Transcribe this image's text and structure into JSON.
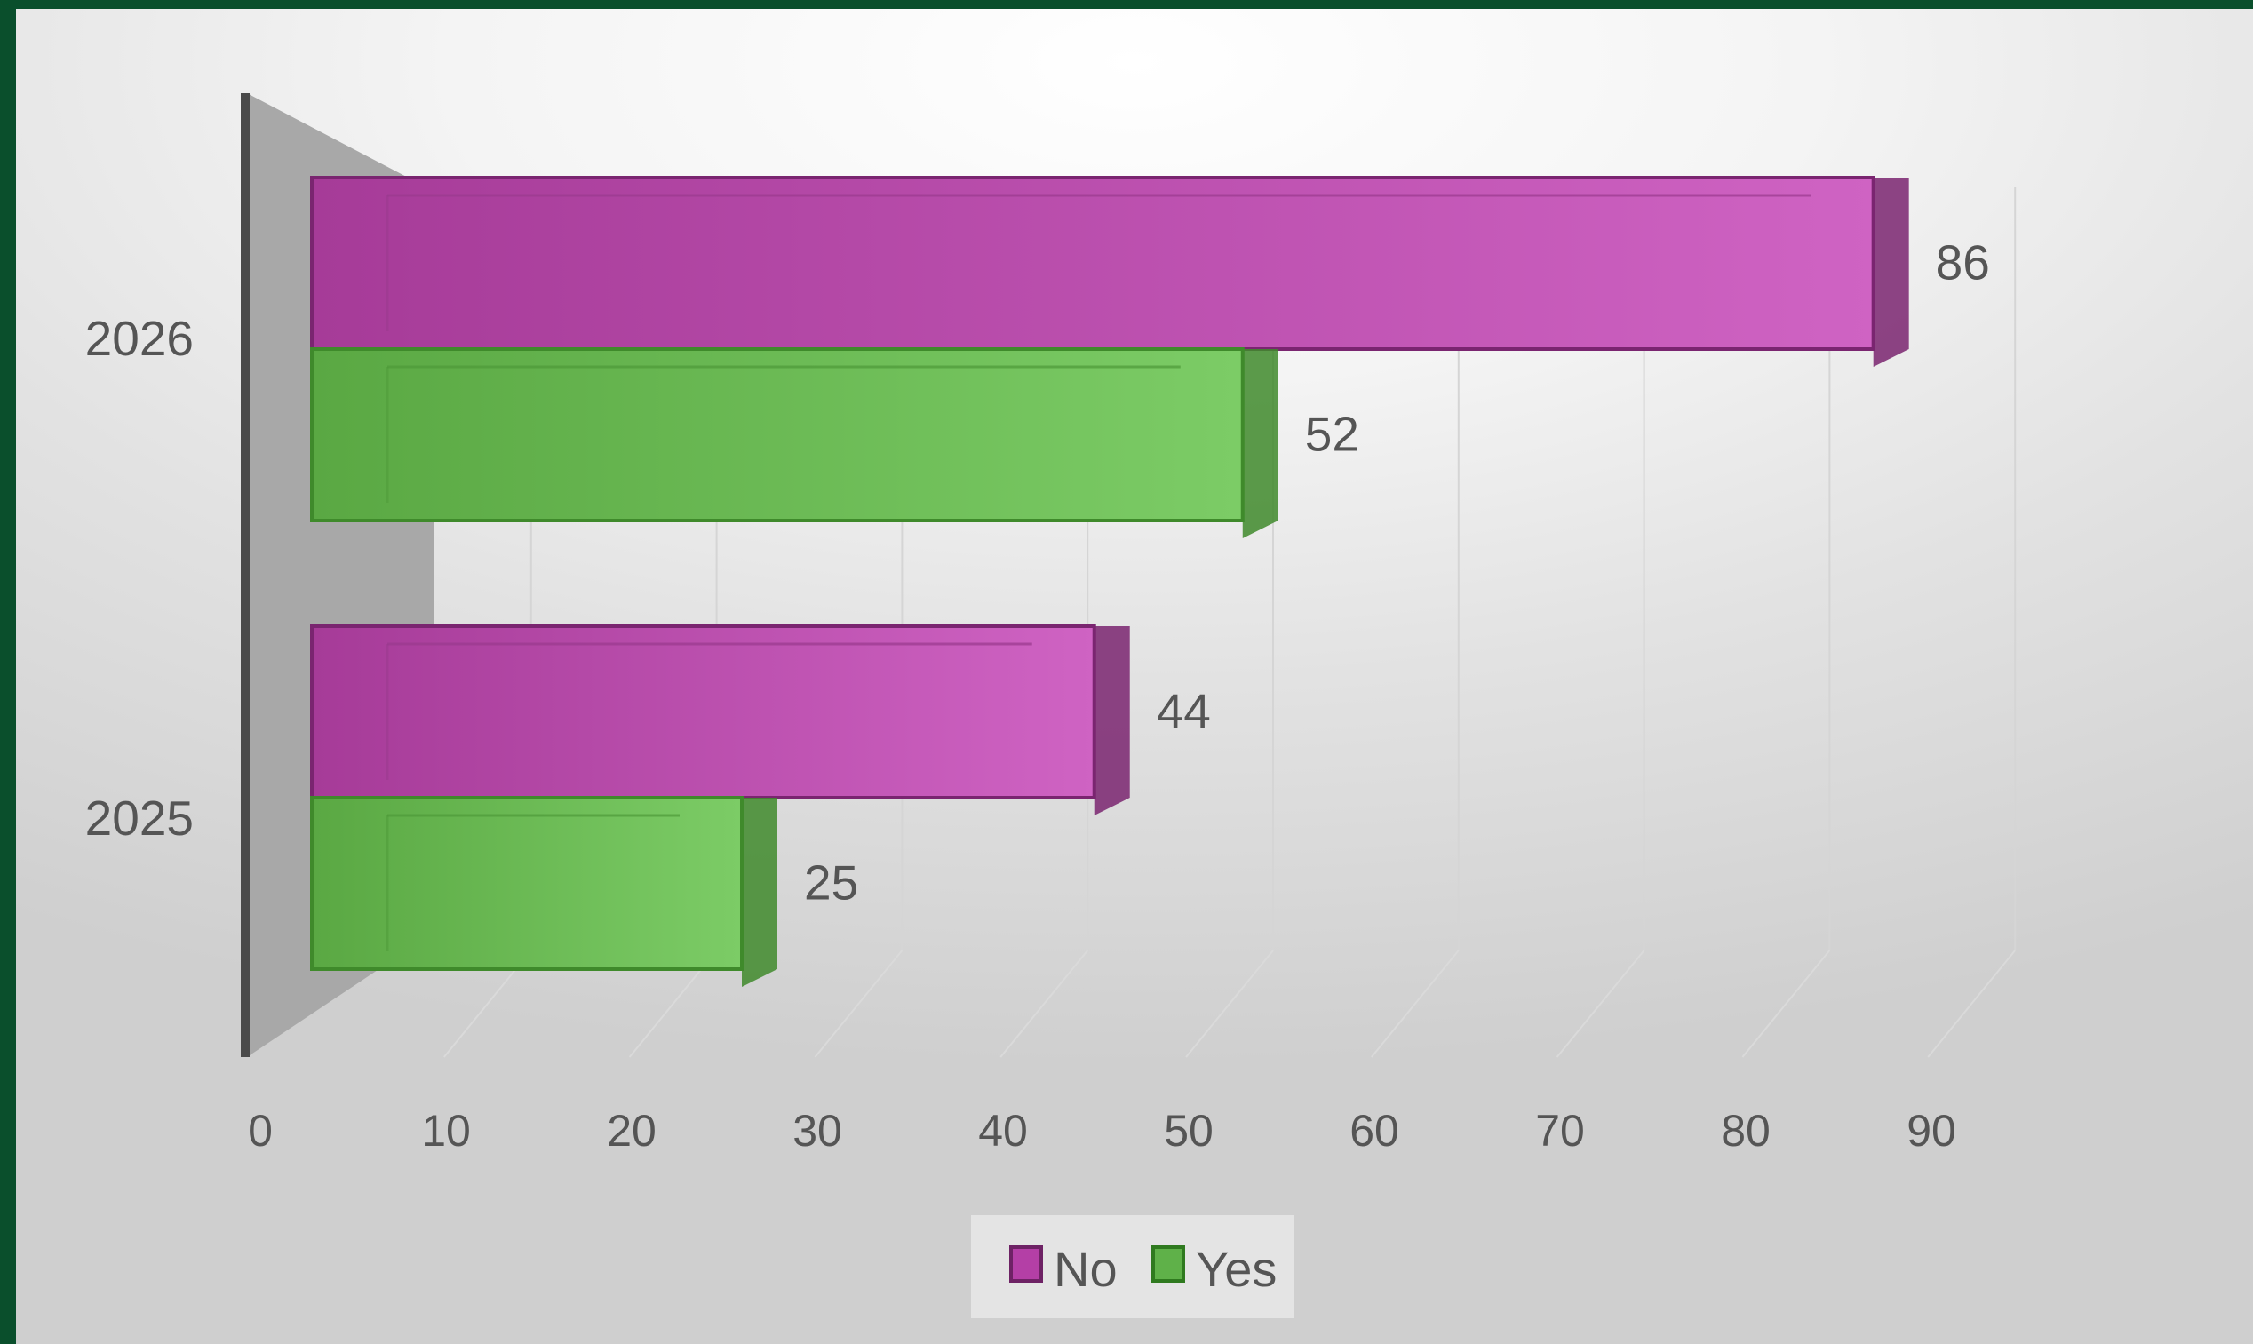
{
  "chart_data": {
    "type": "bar",
    "orientation": "horizontal",
    "three_d": true,
    "categories": [
      "2025",
      "2026"
    ],
    "series": [
      {
        "name": "No",
        "values": [
          44,
          86
        ],
        "color": "#b43fa6"
      },
      {
        "name": "Yes",
        "values": [
          25,
          52
        ],
        "color": "#5fb149"
      }
    ],
    "xlim": [
      0,
      90
    ],
    "x_ticks": [
      "0",
      "10",
      "20",
      "30",
      "40",
      "50",
      "60",
      "70",
      "80",
      "90"
    ],
    "data_labels": true,
    "grid": true,
    "legend": {
      "position": "bottom",
      "entries": [
        "No",
        "Yes"
      ]
    },
    "title": "",
    "xlabel": "",
    "ylabel": ""
  },
  "colors": {
    "frame": "#0a4f2c",
    "text": "#555555",
    "no": "#b43fa6",
    "yes": "#5fb149"
  }
}
